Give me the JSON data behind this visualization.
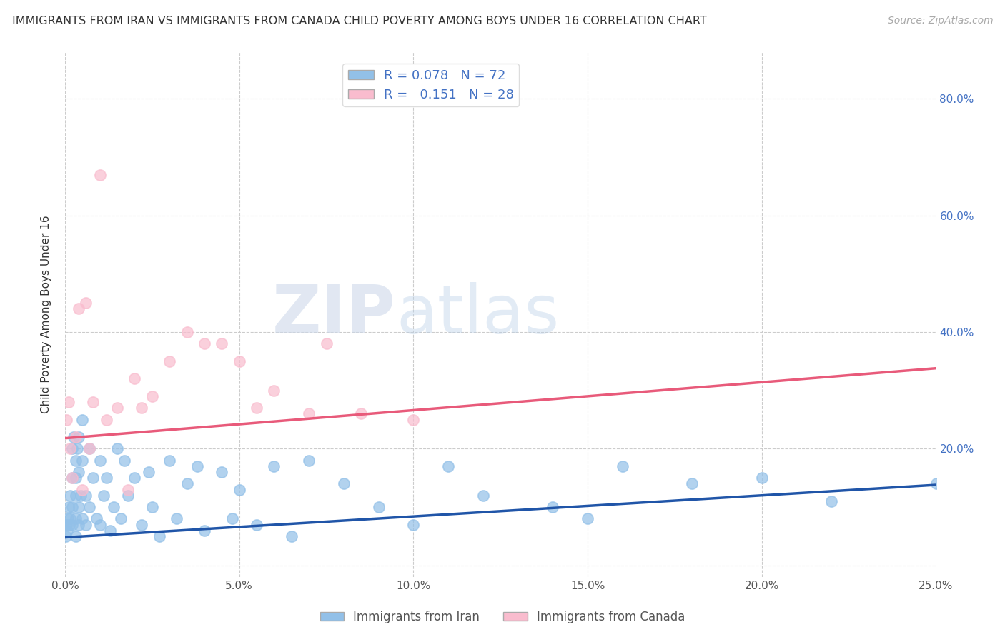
{
  "title": "IMMIGRANTS FROM IRAN VS IMMIGRANTS FROM CANADA CHILD POVERTY AMONG BOYS UNDER 16 CORRELATION CHART",
  "source": "Source: ZipAtlas.com",
  "ylabel": "Child Poverty Among Boys Under 16",
  "xlim": [
    0.0,
    0.25
  ],
  "ylim": [
    -0.02,
    0.88
  ],
  "xticks": [
    0.0,
    0.05,
    0.1,
    0.15,
    0.2,
    0.25
  ],
  "xticklabels": [
    "0.0%",
    "5.0%",
    "10.0%",
    "15.0%",
    "20.0%",
    "25.0%"
  ],
  "yticks": [
    0.0,
    0.2,
    0.4,
    0.6,
    0.8
  ],
  "yticklabels": [
    "",
    "20.0%",
    "40.0%",
    "60.0%",
    "80.0%"
  ],
  "iran_R": 0.078,
  "iran_N": 72,
  "canada_R": 0.151,
  "canada_N": 28,
  "iran_color": "#92C0E8",
  "canada_color": "#F9BCCE",
  "iran_line_color": "#2055A8",
  "canada_line_color": "#E85A7A",
  "background_color": "#ffffff",
  "watermark_zip": "ZIP",
  "watermark_atlas": "atlas",
  "iran_x": [
    0.0002,
    0.0004,
    0.0006,
    0.0008,
    0.001,
    0.0012,
    0.0015,
    0.0015,
    0.002,
    0.002,
    0.002,
    0.002,
    0.0025,
    0.003,
    0.003,
    0.003,
    0.003,
    0.003,
    0.0035,
    0.004,
    0.004,
    0.004,
    0.004,
    0.0045,
    0.005,
    0.005,
    0.005,
    0.006,
    0.006,
    0.007,
    0.007,
    0.008,
    0.009,
    0.01,
    0.01,
    0.011,
    0.012,
    0.013,
    0.014,
    0.015,
    0.016,
    0.017,
    0.018,
    0.02,
    0.022,
    0.024,
    0.025,
    0.027,
    0.03,
    0.032,
    0.035,
    0.038,
    0.04,
    0.045,
    0.048,
    0.05,
    0.055,
    0.06,
    0.065,
    0.07,
    0.08,
    0.09,
    0.1,
    0.11,
    0.12,
    0.14,
    0.15,
    0.16,
    0.18,
    0.2,
    0.22,
    0.25
  ],
  "iran_y": [
    0.05,
    0.07,
    0.06,
    0.08,
    0.1,
    0.07,
    0.12,
    0.08,
    0.15,
    0.2,
    0.1,
    0.07,
    0.22,
    0.18,
    0.12,
    0.08,
    0.05,
    0.15,
    0.2,
    0.16,
    0.1,
    0.07,
    0.22,
    0.12,
    0.18,
    0.08,
    0.25,
    0.12,
    0.07,
    0.1,
    0.2,
    0.15,
    0.08,
    0.18,
    0.07,
    0.12,
    0.15,
    0.06,
    0.1,
    0.2,
    0.08,
    0.18,
    0.12,
    0.15,
    0.07,
    0.16,
    0.1,
    0.05,
    0.18,
    0.08,
    0.14,
    0.17,
    0.06,
    0.16,
    0.08,
    0.13,
    0.07,
    0.17,
    0.05,
    0.18,
    0.14,
    0.1,
    0.07,
    0.17,
    0.12,
    0.1,
    0.08,
    0.17,
    0.14,
    0.15,
    0.11,
    0.14
  ],
  "canada_x": [
    0.0005,
    0.001,
    0.0015,
    0.002,
    0.003,
    0.004,
    0.005,
    0.006,
    0.007,
    0.008,
    0.01,
    0.012,
    0.015,
    0.018,
    0.02,
    0.022,
    0.025,
    0.03,
    0.035,
    0.04,
    0.045,
    0.05,
    0.055,
    0.06,
    0.07,
    0.075,
    0.085,
    0.1
  ],
  "canada_y": [
    0.25,
    0.28,
    0.2,
    0.15,
    0.22,
    0.44,
    0.13,
    0.45,
    0.2,
    0.28,
    0.67,
    0.25,
    0.27,
    0.13,
    0.32,
    0.27,
    0.29,
    0.35,
    0.4,
    0.38,
    0.38,
    0.35,
    0.27,
    0.3,
    0.26,
    0.38,
    0.26,
    0.25
  ],
  "iran_trend": [
    0.048,
    0.138
  ],
  "canada_trend": [
    0.218,
    0.338
  ]
}
